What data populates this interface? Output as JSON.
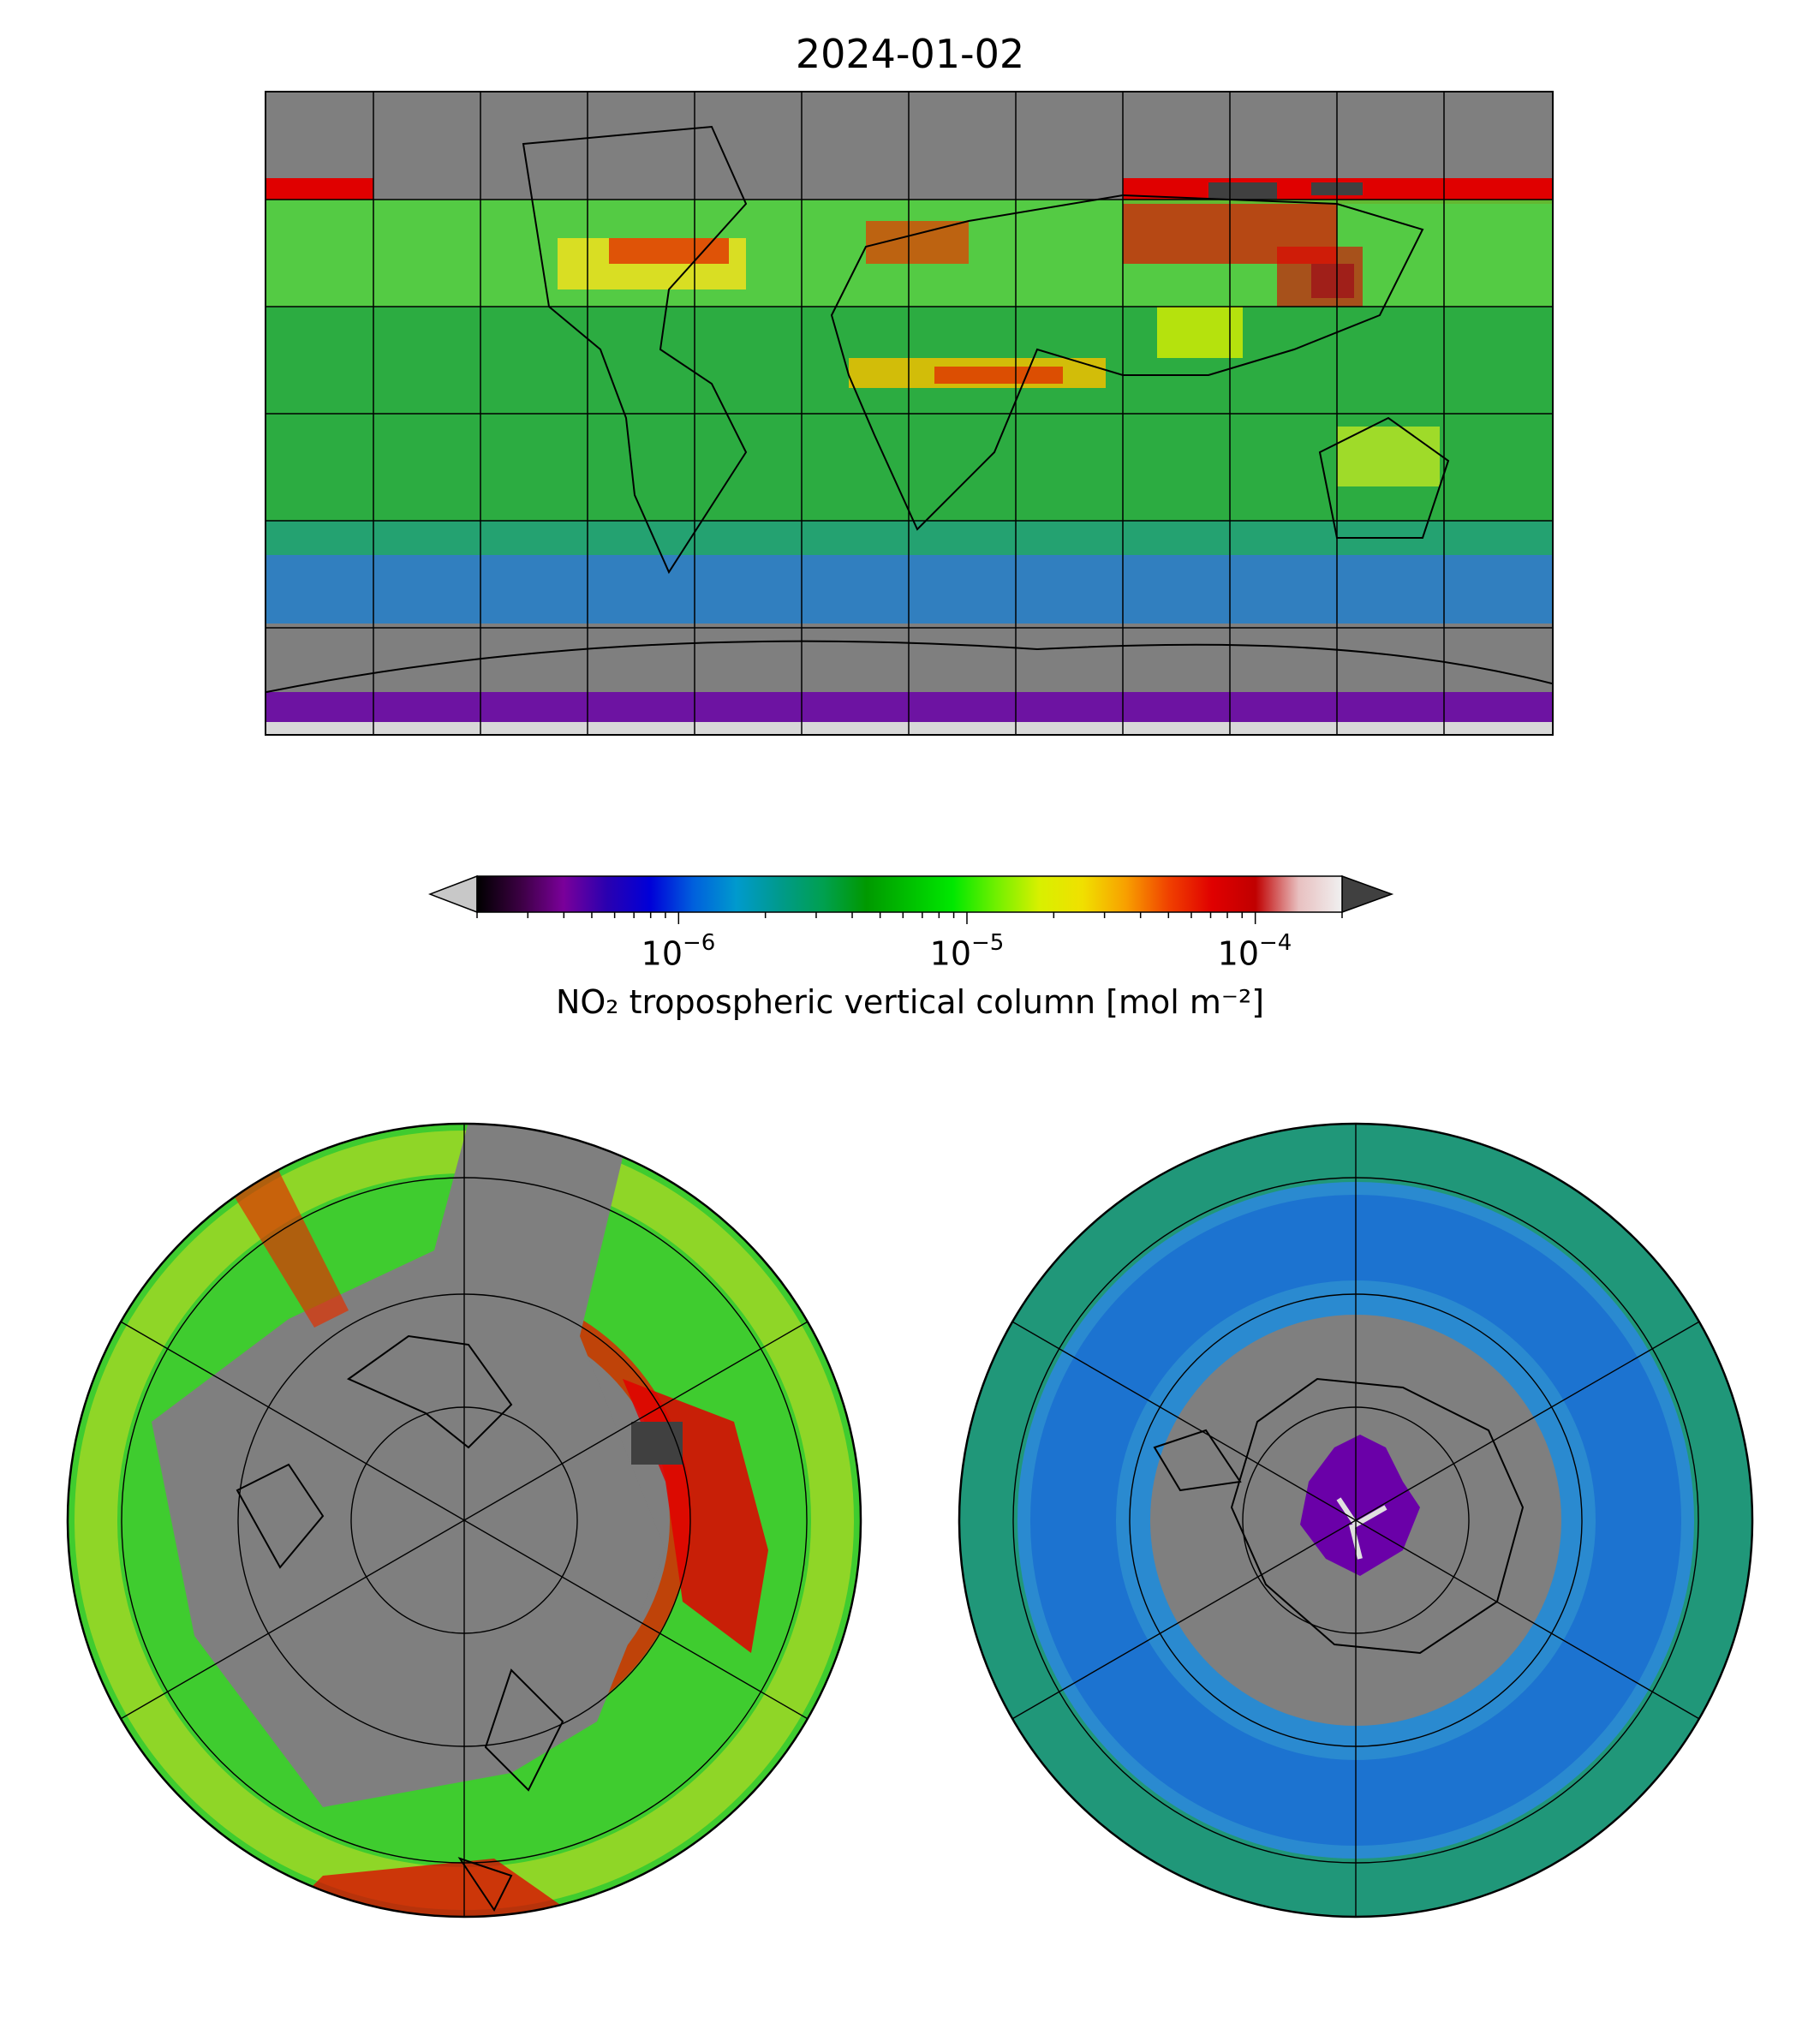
{
  "title": "2024-01-02",
  "colorbar": {
    "label": "NO₂ tropospheric vertical column [mol m⁻²]",
    "scale": "log",
    "range": [
      2e-07,
      0.0002
    ],
    "ticks": [
      {
        "value": 1e-06,
        "base": "10",
        "exp": "−6"
      },
      {
        "value": 1e-05,
        "base": "10",
        "exp": "−5"
      },
      {
        "value": 0.0001,
        "base": "10",
        "exp": "−4"
      }
    ],
    "extend": "both",
    "under_color": "#c8c8c8",
    "over_color": "#404040",
    "colormap": [
      "#000000",
      "#3b0042",
      "#7a009a",
      "#2a00b0",
      "#0000d8",
      "#0060dd",
      "#009acd",
      "#009a8c",
      "#00a050",
      "#009900",
      "#00c000",
      "#00e800",
      "#70f000",
      "#d8f000",
      "#f0e000",
      "#f8a000",
      "#f04000",
      "#e00000",
      "#c00000",
      "#e8c0c0",
      "#f0f0f0"
    ]
  },
  "maps": {
    "world": {
      "projection": "PlateCarree",
      "fill_color": "#7f7f7f",
      "gridlines": true
    },
    "north": {
      "projection": "NorthPolarStereo",
      "fill_color": "#7f7f7f",
      "gridlines": true
    },
    "south": {
      "projection": "SouthPolarStereo",
      "fill_color": "#7f7f7f",
      "gridlines": true
    }
  }
}
